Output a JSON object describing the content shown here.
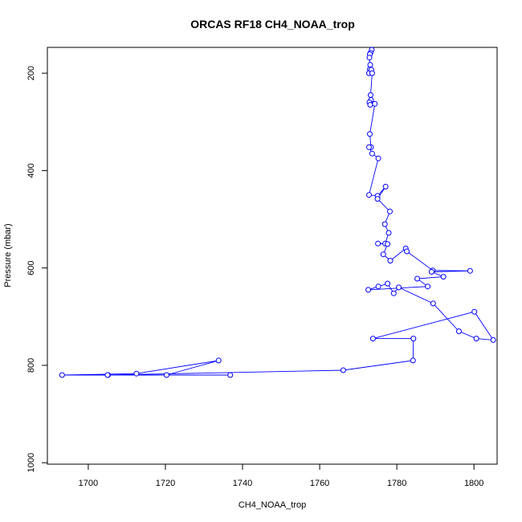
{
  "chart_data": {
    "type": "line",
    "title": "ORCAS RF18 CH4_NOAA_trop",
    "xlabel": "CH4_NOAA_trop",
    "ylabel": "Pressure (mbar)",
    "xlim": [
      1689.4,
      1806.0
    ],
    "ylim": [
      1003,
      147
    ],
    "y_reversed": true,
    "xticks": [
      1700,
      1720,
      1740,
      1760,
      1780,
      1800
    ],
    "yticks": [
      200,
      400,
      600,
      800,
      1000
    ],
    "grid": false,
    "legend": "none",
    "color": "#0000ff",
    "marker": "open-circle",
    "series": [
      {
        "x": [
          1773.5,
          1773.2,
          1773.0,
          1772.9,
          1773.1,
          1773.0,
          1772.8,
          1773.4,
          1773.6,
          1773.2,
          1773.3,
          1772.9,
          1773.1,
          1774.3,
          1773.0,
          1773.3,
          1772.8,
          1773.6,
          1775.2,
          1772.8,
          1775.0,
          1777.1,
          1775.0,
          1778.2,
          1776.9,
          1777.9,
          1777.0,
          1775.1,
          1777.6,
          1776.5,
          1778.3,
          1782.3,
          1782.6,
          1789.3,
          1799.0,
          1789.0,
          1792.1,
          1785.3,
          1788.0,
          1772.6,
          1775.2,
          1777.6,
          1779.2,
          1780.5,
          1789.4,
          1796.1,
          1800.6,
          1805.0,
          1800.1,
          1773.8,
          1784.3,
          1784.2,
          1766.1,
          1705.1,
          1693.2,
          1712.5,
          1733.8,
          1720.3,
          1736.8,
          1705.0
        ],
        "y": [
          152,
          158,
          161,
          168,
          183,
          192,
          200,
          193,
          200,
          245,
          255,
          260,
          265,
          263,
          325,
          352,
          352,
          365,
          375,
          450,
          452,
          433,
          458,
          484,
          510,
          528,
          550,
          550,
          551,
          572,
          585,
          560,
          566,
          605,
          606,
          608,
          618,
          622,
          638,
          645,
          638,
          632,
          652,
          640,
          673,
          730,
          745,
          748,
          690,
          745,
          745,
          790,
          810,
          820,
          820,
          817,
          790,
          820,
          820,
          820
        ]
      }
    ]
  }
}
